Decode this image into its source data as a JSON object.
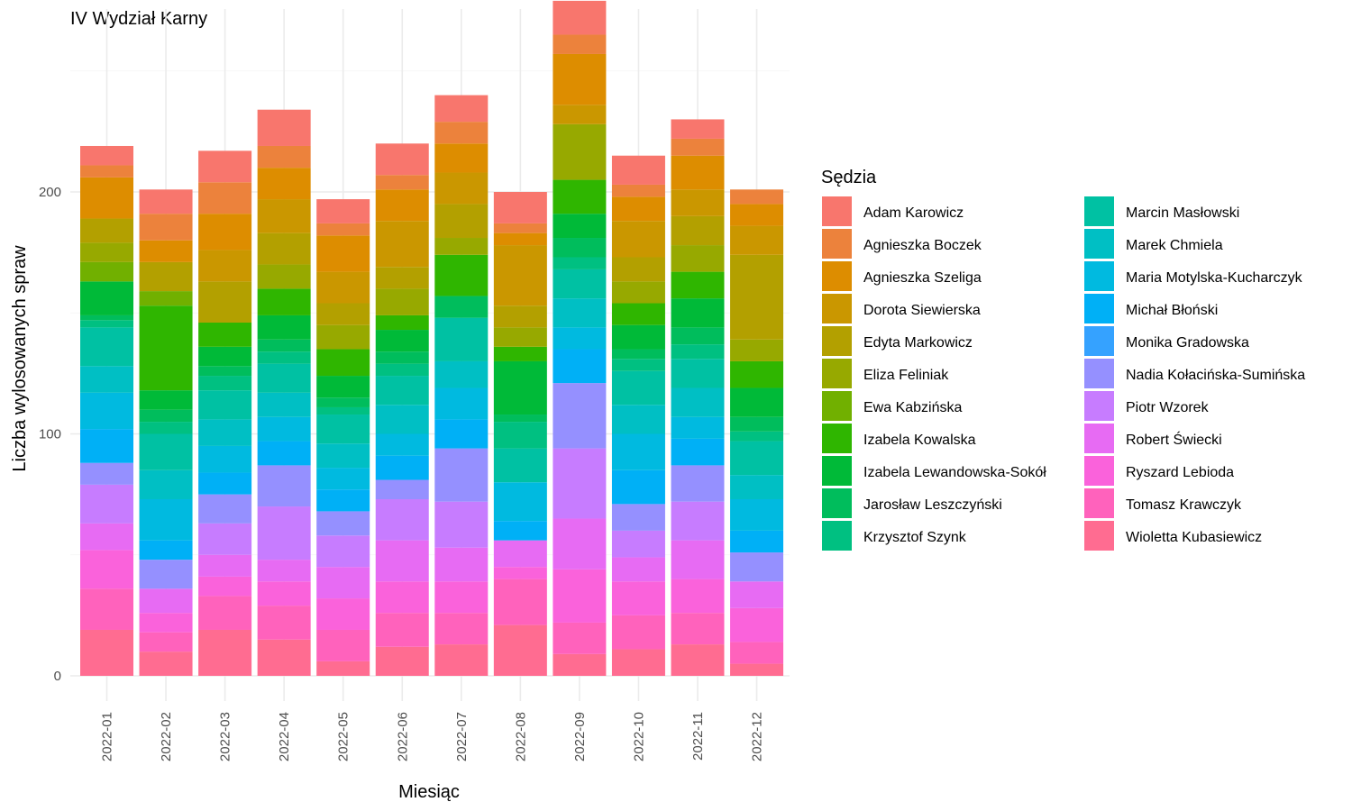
{
  "chart_data": {
    "type": "bar",
    "stacked": true,
    "title": "IV Wydział Karny",
    "xlabel": "Miesiąc",
    "ylabel": "Liczba wylosowanych spraw",
    "ylim": [
      0,
      262
    ],
    "yticks": [
      0,
      100,
      200
    ],
    "grid": true,
    "legend_title": "Sędzia",
    "legend_position": "right",
    "categories": [
      "2022-01",
      "2022-02",
      "2022-03",
      "2022-04",
      "2022-05",
      "2022-06",
      "2022-07",
      "2022-08",
      "2022-09",
      "2022-10",
      "2022-11",
      "2022-12"
    ],
    "series": [
      {
        "name": "Adam Karowicz",
        "color": "#F8766D",
        "values": [
          8,
          10,
          13,
          15,
          10,
          13,
          11,
          13,
          14,
          12,
          8,
          0
        ]
      },
      {
        "name": "Agnieszka Boczek",
        "color": "#EC823C",
        "values": [
          5,
          11,
          13,
          9,
          5,
          6,
          9,
          4,
          8,
          5,
          7,
          6
        ]
      },
      {
        "name": "Agnieszka Szeliga",
        "color": "#DD8D00",
        "values": [
          17,
          9,
          15,
          13,
          15,
          13,
          12,
          5,
          21,
          10,
          14,
          9
        ]
      },
      {
        "name": "Dorota Siewierska",
        "color": "#CA9700",
        "values": [
          0,
          0,
          13,
          14,
          13,
          19,
          13,
          25,
          8,
          15,
          11,
          12
        ]
      },
      {
        "name": "Edyta Markowicz",
        "color": "#B3A000",
        "values": [
          10,
          12,
          17,
          13,
          9,
          9,
          14,
          9,
          0,
          10,
          12,
          35
        ]
      },
      {
        "name": "Eliza Feliniak",
        "color": "#97A900",
        "values": [
          8,
          0,
          0,
          10,
          10,
          11,
          7,
          8,
          23,
          9,
          11,
          9
        ]
      },
      {
        "name": "Ewa Kabzińska",
        "color": "#71B000",
        "values": [
          8,
          6,
          0,
          0,
          0,
          0,
          0,
          0,
          0,
          0,
          0,
          0
        ]
      },
      {
        "name": "Izabela Kowalska",
        "color": "#2FB600",
        "values": [
          0,
          35,
          10,
          11,
          11,
          6,
          17,
          6,
          14,
          9,
          11,
          11
        ]
      },
      {
        "name": "Izabela Lewandowska-Sokół",
        "color": "#00BA38",
        "values": [
          14,
          8,
          8,
          10,
          9,
          9,
          0,
          22,
          10,
          10,
          12,
          12
        ]
      },
      {
        "name": "Jarosław Leszczyński",
        "color": "#00BD5C",
        "values": [
          2,
          5,
          4,
          5,
          4,
          5,
          9,
          3,
          8,
          4,
          7,
          6
        ]
      },
      {
        "name": "Krzysztof Szynk",
        "color": "#00C081",
        "values": [
          3,
          5,
          6,
          5,
          3,
          5,
          0,
          11,
          5,
          5,
          6,
          4
        ]
      },
      {
        "name": "Marcin Masłowski",
        "color": "#00C1A3",
        "values": [
          16,
          15,
          12,
          12,
          12,
          12,
          18,
          14,
          12,
          14,
          12,
          14
        ]
      },
      {
        "name": "Marek Chmiela",
        "color": "#00BFC4",
        "values": [
          11,
          12,
          11,
          10,
          10,
          12,
          11,
          0,
          12,
          12,
          12,
          10
        ]
      },
      {
        "name": "Maria Motylska-Kucharczyk",
        "color": "#00BAE0",
        "values": [
          15,
          17,
          11,
          10,
          9,
          9,
          13,
          16,
          9,
          15,
          9,
          13
        ]
      },
      {
        "name": "Michał Błoński",
        "color": "#00B0F6",
        "values": [
          14,
          8,
          9,
          10,
          9,
          10,
          12,
          8,
          14,
          14,
          11,
          9
        ]
      },
      {
        "name": "Monika Gradowska",
        "color": "#35A2FF",
        "values": [
          0,
          0,
          0,
          0,
          0,
          0,
          0,
          0,
          0,
          0,
          0,
          0
        ]
      },
      {
        "name": "Nadia Kołacińska-Sumińska",
        "color": "#9590FF",
        "values": [
          9,
          12,
          12,
          17,
          10,
          8,
          22,
          0,
          27,
          11,
          15,
          12
        ]
      },
      {
        "name": "Piotr Wzorek",
        "color": "#C77CFF",
        "values": [
          16,
          0,
          13,
          22,
          13,
          17,
          19,
          0,
          29,
          11,
          16,
          0
        ]
      },
      {
        "name": "Robert Świecki",
        "color": "#E76BF3",
        "values": [
          11,
          10,
          9,
          9,
          13,
          17,
          14,
          11,
          21,
          10,
          16,
          11
        ]
      },
      {
        "name": "Ryszard Lebioda",
        "color": "#FA62DB",
        "values": [
          16,
          8,
          8,
          10,
          13,
          13,
          13,
          5,
          22,
          14,
          14,
          14
        ]
      },
      {
        "name": "Tomasz Krawczyk",
        "color": "#FF62BC",
        "values": [
          17,
          8,
          14,
          14,
          13,
          14,
          13,
          19,
          13,
          14,
          13,
          9
        ]
      },
      {
        "name": "Wioletta Kubasiewicz",
        "color": "#FF6C91",
        "values": [
          19,
          10,
          19,
          15,
          6,
          12,
          13,
          21,
          9,
          11,
          13,
          5
        ]
      }
    ]
  }
}
